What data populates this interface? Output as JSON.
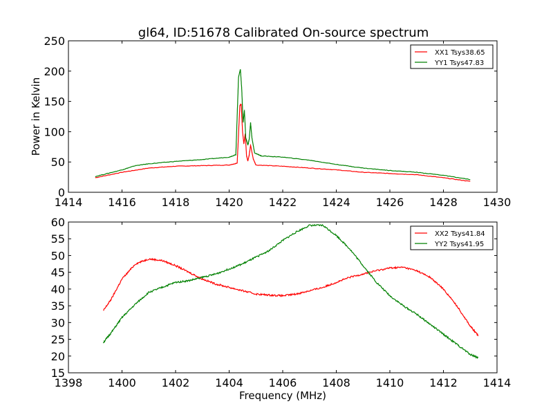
{
  "title": "gl64, ID:51678 Calibrated On-source spectrum",
  "chart_data": [
    {
      "type": "line",
      "title": "gl64, ID:51678 Calibrated On-source spectrum",
      "xlabel": "",
      "ylabel": "Power in Kelvin",
      "xlim": [
        1414,
        1430
      ],
      "ylim": [
        0,
        250
      ],
      "xticks": [
        1414,
        1416,
        1418,
        1420,
        1422,
        1424,
        1426,
        1428,
        1430
      ],
      "yticks": [
        0,
        50,
        100,
        150,
        200,
        250
      ],
      "legend": "top-right",
      "series": [
        {
          "name": "XX1 Tsys38.65",
          "color": "#ff0000",
          "x": [
            1415,
            1416,
            1417,
            1418,
            1419,
            1420,
            1420.3,
            1420.4,
            1420.45,
            1420.5,
            1420.55,
            1420.6,
            1420.65,
            1420.7,
            1420.75,
            1420.8,
            1420.9,
            1421,
            1422,
            1423,
            1424,
            1425,
            1426,
            1427,
            1428,
            1429
          ],
          "y": [
            24,
            33,
            40,
            43,
            44,
            45,
            48,
            143,
            145,
            100,
            80,
            97,
            60,
            52,
            62,
            78,
            55,
            45,
            43,
            40,
            37,
            33,
            31,
            29,
            24,
            18
          ]
        },
        {
          "name": "YY1 Tsys47.83",
          "color": "#008000",
          "x": [
            1415,
            1416,
            1416.5,
            1417,
            1418,
            1419,
            1420,
            1420.25,
            1420.35,
            1420.42,
            1420.47,
            1420.52,
            1420.57,
            1420.62,
            1420.7,
            1420.75,
            1420.8,
            1420.85,
            1420.95,
            1421.2,
            1422,
            1423,
            1424,
            1425,
            1426,
            1427,
            1428,
            1429
          ],
          "y": [
            26,
            37,
            44,
            47,
            51,
            54,
            58,
            62,
            190,
            203,
            170,
            115,
            135,
            90,
            78,
            88,
            115,
            90,
            65,
            60,
            58,
            53,
            46,
            40,
            36,
            33,
            28,
            21
          ]
        }
      ]
    },
    {
      "type": "line",
      "title": "",
      "xlabel": "Frequency (MHz)",
      "ylabel": "",
      "xlim": [
        1398,
        1414
      ],
      "ylim": [
        15,
        60
      ],
      "xticks": [
        1398,
        1400,
        1402,
        1404,
        1406,
        1408,
        1410,
        1412,
        1414
      ],
      "yticks": [
        15,
        20,
        25,
        30,
        35,
        40,
        45,
        50,
        55,
        60
      ],
      "legend": "top-right",
      "series": [
        {
          "name": "XX2 Tsys41.84",
          "color": "#ff0000",
          "x": [
            1399.3,
            1399.6,
            1400,
            1400.5,
            1401,
            1401.5,
            1402,
            1402.5,
            1403,
            1403.5,
            1404,
            1404.5,
            1405,
            1405.5,
            1406,
            1406.5,
            1407,
            1407.5,
            1408,
            1408.5,
            1409,
            1409.5,
            1410,
            1410.5,
            1411,
            1411.5,
            1412,
            1412.5,
            1413,
            1413.3
          ],
          "y": [
            33.5,
            37,
            43,
            47.5,
            49,
            48.5,
            47,
            45,
            43,
            41.5,
            40.5,
            39.5,
            38.5,
            38.2,
            38,
            38.5,
            39.5,
            40.5,
            42,
            43.5,
            44.5,
            45.5,
            46.3,
            46.5,
            45.5,
            43.5,
            40,
            35,
            29,
            26
          ]
        },
        {
          "name": "YY2 Tsys41.95",
          "color": "#008000",
          "x": [
            1399.3,
            1399.6,
            1400,
            1400.5,
            1401,
            1401.5,
            1402,
            1402.5,
            1403,
            1403.5,
            1404,
            1404.5,
            1405,
            1405.5,
            1406,
            1406.5,
            1407,
            1407.5,
            1408,
            1408.5,
            1409,
            1409.5,
            1410,
            1410.5,
            1411,
            1411.5,
            1412,
            1412.5,
            1413,
            1413.3
          ],
          "y": [
            24,
            27,
            31.5,
            35.5,
            39,
            40.5,
            42,
            42.5,
            43.5,
            44.5,
            46,
            47.5,
            49.5,
            51.5,
            54.5,
            57,
            59,
            59,
            56,
            52,
            47,
            42,
            38,
            35,
            32.5,
            29.5,
            26.5,
            23.5,
            20.5,
            19.5
          ]
        }
      ]
    }
  ]
}
